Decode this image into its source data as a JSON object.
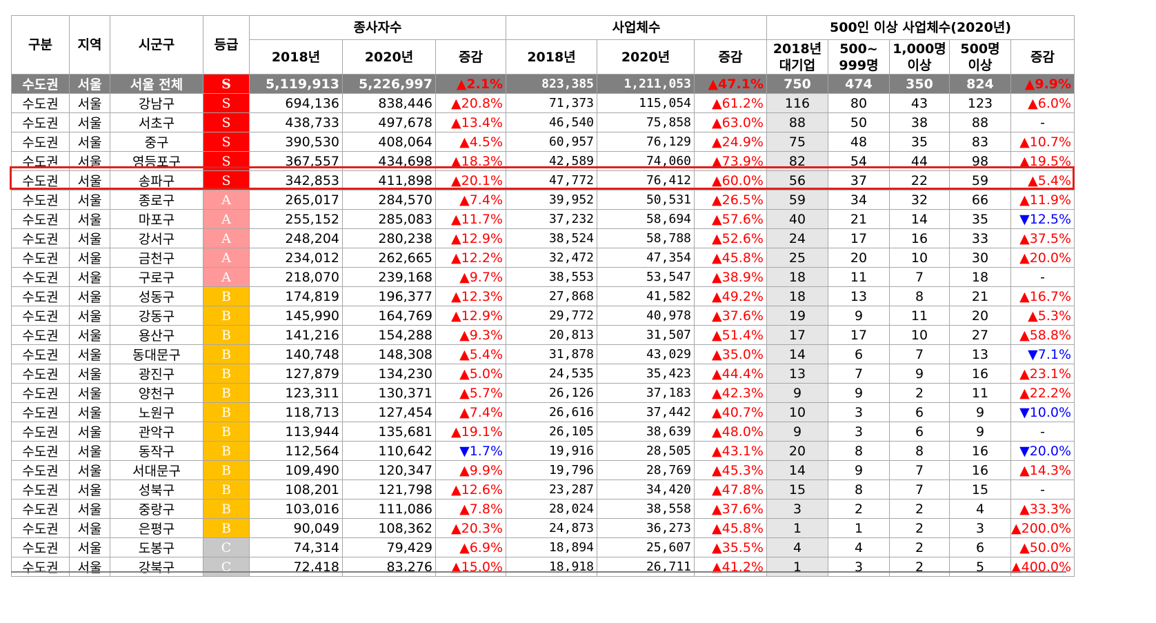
{
  "header": {
    "gubun": "구분",
    "region": "지역",
    "district": "시군구",
    "grade": "등급",
    "employees_group": "종사자수",
    "businesses_group": "사업체수",
    "large_group": "500인 이상 사업체수(2020년)",
    "y2018": "2018년",
    "y2020": "2020년",
    "change": "증감",
    "large_2018_a": "2018년",
    "large_2018_b": "대기업",
    "b500_a": "500~",
    "b500_b": "999명",
    "b1000_a": "1,000명",
    "b1000_b": "이상",
    "b500plus_a": "500명",
    "b500plus_b": "이상"
  },
  "grade_colors": {
    "S": "#ff0000",
    "A": "#ff9999",
    "B": "#ffc000",
    "C": "#c8c8c8"
  },
  "rows": [
    {
      "area": "수도권",
      "region": "서울",
      "district": "서울 전체",
      "grade": "S",
      "emp2018": "5,119,913",
      "emp2020": "5,226,997",
      "empChg": "▲2.1%",
      "biz2018": "823,385",
      "biz2020": "1,211,053",
      "bizChg": "▲47.1%",
      "large2018": "750",
      "b500": "474",
      "b1000": "350",
      "b500plus": "824",
      "largeChg": "▲9.9%"
    },
    {
      "area": "수도권",
      "region": "서울",
      "district": "강남구",
      "grade": "S",
      "emp2018": "694,136",
      "emp2020": "838,446",
      "empChg": "▲20.8%",
      "biz2018": "71,373",
      "biz2020": "115,054",
      "bizChg": "▲61.2%",
      "large2018": "116",
      "b500": "80",
      "b1000": "43",
      "b500plus": "123",
      "largeChg": "▲6.0%"
    },
    {
      "area": "수도권",
      "region": "서울",
      "district": "서초구",
      "grade": "S",
      "emp2018": "438,733",
      "emp2020": "497,678",
      "empChg": "▲13.4%",
      "biz2018": "46,540",
      "biz2020": "75,858",
      "bizChg": "▲63.0%",
      "large2018": "88",
      "b500": "50",
      "b1000": "38",
      "b500plus": "88",
      "largeChg": "-"
    },
    {
      "area": "수도권",
      "region": "서울",
      "district": "중구",
      "grade": "S",
      "emp2018": "390,530",
      "emp2020": "408,064",
      "empChg": "▲4.5%",
      "biz2018": "60,957",
      "biz2020": "76,129",
      "bizChg": "▲24.9%",
      "large2018": "75",
      "b500": "48",
      "b1000": "35",
      "b500plus": "83",
      "largeChg": "▲10.7%"
    },
    {
      "area": "수도권",
      "region": "서울",
      "district": "영등포구",
      "grade": "S",
      "emp2018": "367,557",
      "emp2020": "434,698",
      "empChg": "▲18.3%",
      "biz2018": "42,589",
      "biz2020": "74,060",
      "bizChg": "▲73.9%",
      "large2018": "82",
      "b500": "54",
      "b1000": "44",
      "b500plus": "98",
      "largeChg": "▲19.5%"
    },
    {
      "area": "수도권",
      "region": "서울",
      "district": "송파구",
      "grade": "S",
      "emp2018": "342,853",
      "emp2020": "411,898",
      "empChg": "▲20.1%",
      "biz2018": "47,772",
      "biz2020": "76,412",
      "bizChg": "▲60.0%",
      "large2018": "56",
      "b500": "37",
      "b1000": "22",
      "b500plus": "59",
      "largeChg": "▲5.4%"
    },
    {
      "area": "수도권",
      "region": "서울",
      "district": "종로구",
      "grade": "A",
      "emp2018": "265,017",
      "emp2020": "284,570",
      "empChg": "▲7.4%",
      "biz2018": "39,952",
      "biz2020": "50,531",
      "bizChg": "▲26.5%",
      "large2018": "59",
      "b500": "34",
      "b1000": "32",
      "b500plus": "66",
      "largeChg": "▲11.9%"
    },
    {
      "area": "수도권",
      "region": "서울",
      "district": "마포구",
      "grade": "A",
      "emp2018": "255,152",
      "emp2020": "285,083",
      "empChg": "▲11.7%",
      "biz2018": "37,232",
      "biz2020": "58,694",
      "bizChg": "▲57.6%",
      "large2018": "40",
      "b500": "21",
      "b1000": "14",
      "b500plus": "35",
      "largeChg": "▼12.5%"
    },
    {
      "area": "수도권",
      "region": "서울",
      "district": "강서구",
      "grade": "A",
      "emp2018": "248,204",
      "emp2020": "280,238",
      "empChg": "▲12.9%",
      "biz2018": "38,524",
      "biz2020": "58,788",
      "bizChg": "▲52.6%",
      "large2018": "24",
      "b500": "17",
      "b1000": "16",
      "b500plus": "33",
      "largeChg": "▲37.5%"
    },
    {
      "area": "수도권",
      "region": "서울",
      "district": "금천구",
      "grade": "A",
      "emp2018": "234,012",
      "emp2020": "262,665",
      "empChg": "▲12.2%",
      "biz2018": "32,472",
      "biz2020": "47,354",
      "bizChg": "▲45.8%",
      "large2018": "25",
      "b500": "20",
      "b1000": "10",
      "b500plus": "30",
      "largeChg": "▲20.0%"
    },
    {
      "area": "수도권",
      "region": "서울",
      "district": "구로구",
      "grade": "A",
      "emp2018": "218,070",
      "emp2020": "239,168",
      "empChg": "▲9.7%",
      "biz2018": "38,553",
      "biz2020": "53,547",
      "bizChg": "▲38.9%",
      "large2018": "18",
      "b500": "11",
      "b1000": "7",
      "b500plus": "18",
      "largeChg": "-"
    },
    {
      "area": "수도권",
      "region": "서울",
      "district": "성동구",
      "grade": "B",
      "emp2018": "174,819",
      "emp2020": "196,377",
      "empChg": "▲12.3%",
      "biz2018": "27,868",
      "biz2020": "41,582",
      "bizChg": "▲49.2%",
      "large2018": "18",
      "b500": "13",
      "b1000": "8",
      "b500plus": "21",
      "largeChg": "▲16.7%"
    },
    {
      "area": "수도권",
      "region": "서울",
      "district": "강동구",
      "grade": "B",
      "emp2018": "145,990",
      "emp2020": "164,769",
      "empChg": "▲12.9%",
      "biz2018": "29,772",
      "biz2020": "40,978",
      "bizChg": "▲37.6%",
      "large2018": "19",
      "b500": "9",
      "b1000": "11",
      "b500plus": "20",
      "largeChg": "▲5.3%"
    },
    {
      "area": "수도권",
      "region": "서울",
      "district": "용산구",
      "grade": "B",
      "emp2018": "141,216",
      "emp2020": "154,288",
      "empChg": "▲9.3%",
      "biz2018": "20,813",
      "biz2020": "31,507",
      "bizChg": "▲51.4%",
      "large2018": "17",
      "b500": "17",
      "b1000": "10",
      "b500plus": "27",
      "largeChg": "▲58.8%"
    },
    {
      "area": "수도권",
      "region": "서울",
      "district": "동대문구",
      "grade": "B",
      "emp2018": "140,748",
      "emp2020": "148,308",
      "empChg": "▲5.4%",
      "biz2018": "31,878",
      "biz2020": "43,029",
      "bizChg": "▲35.0%",
      "large2018": "14",
      "b500": "6",
      "b1000": "7",
      "b500plus": "13",
      "largeChg": "▼7.1%"
    },
    {
      "area": "수도권",
      "region": "서울",
      "district": "광진구",
      "grade": "B",
      "emp2018": "127,879",
      "emp2020": "134,230",
      "empChg": "▲5.0%",
      "biz2018": "24,535",
      "biz2020": "35,423",
      "bizChg": "▲44.4%",
      "large2018": "13",
      "b500": "7",
      "b1000": "9",
      "b500plus": "16",
      "largeChg": "▲23.1%"
    },
    {
      "area": "수도권",
      "region": "서울",
      "district": "양천구",
      "grade": "B",
      "emp2018": "123,311",
      "emp2020": "130,371",
      "empChg": "▲5.7%",
      "biz2018": "26,126",
      "biz2020": "37,183",
      "bizChg": "▲42.3%",
      "large2018": "9",
      "b500": "9",
      "b1000": "2",
      "b500plus": "11",
      "largeChg": "▲22.2%"
    },
    {
      "area": "수도권",
      "region": "서울",
      "district": "노원구",
      "grade": "B",
      "emp2018": "118,713",
      "emp2020": "127,454",
      "empChg": "▲7.4%",
      "biz2018": "26,616",
      "biz2020": "37,442",
      "bizChg": "▲40.7%",
      "large2018": "10",
      "b500": "3",
      "b1000": "6",
      "b500plus": "9",
      "largeChg": "▼10.0%"
    },
    {
      "area": "수도권",
      "region": "서울",
      "district": "관악구",
      "grade": "B",
      "emp2018": "113,944",
      "emp2020": "135,681",
      "empChg": "▲19.1%",
      "biz2018": "26,105",
      "biz2020": "38,639",
      "bizChg": "▲48.0%",
      "large2018": "9",
      "b500": "3",
      "b1000": "6",
      "b500plus": "9",
      "largeChg": "-"
    },
    {
      "area": "수도권",
      "region": "서울",
      "district": "동작구",
      "grade": "B",
      "emp2018": "112,564",
      "emp2020": "110,642",
      "empChg": "▼1.7%",
      "biz2018": "19,916",
      "biz2020": "28,505",
      "bizChg": "▲43.1%",
      "large2018": "20",
      "b500": "8",
      "b1000": "8",
      "b500plus": "16",
      "largeChg": "▼20.0%"
    },
    {
      "area": "수도권",
      "region": "서울",
      "district": "서대문구",
      "grade": "B",
      "emp2018": "109,490",
      "emp2020": "120,347",
      "empChg": "▲9.9%",
      "biz2018": "19,796",
      "biz2020": "28,769",
      "bizChg": "▲45.3%",
      "large2018": "14",
      "b500": "9",
      "b1000": "7",
      "b500plus": "16",
      "largeChg": "▲14.3%"
    },
    {
      "area": "수도권",
      "region": "서울",
      "district": "성북구",
      "grade": "B",
      "emp2018": "108,201",
      "emp2020": "121,798",
      "empChg": "▲12.6%",
      "biz2018": "23,287",
      "biz2020": "34,420",
      "bizChg": "▲47.8%",
      "large2018": "15",
      "b500": "8",
      "b1000": "7",
      "b500plus": "15",
      "largeChg": "-"
    },
    {
      "area": "수도권",
      "region": "서울",
      "district": "중랑구",
      "grade": "B",
      "emp2018": "103,016",
      "emp2020": "111,086",
      "empChg": "▲7.8%",
      "biz2018": "28,024",
      "biz2020": "38,558",
      "bizChg": "▲37.6%",
      "large2018": "3",
      "b500": "2",
      "b1000": "2",
      "b500plus": "4",
      "largeChg": "▲33.3%"
    },
    {
      "area": "수도권",
      "region": "서울",
      "district": "은평구",
      "grade": "B",
      "emp2018": "90,049",
      "emp2020": "108,362",
      "empChg": "▲20.3%",
      "biz2018": "24,873",
      "biz2020": "36,273",
      "bizChg": "▲45.8%",
      "large2018": "1",
      "b500": "1",
      "b1000": "2",
      "b500plus": "3",
      "largeChg": "▲200.0%"
    },
    {
      "area": "수도권",
      "region": "서울",
      "district": "도봉구",
      "grade": "C",
      "emp2018": "74,314",
      "emp2020": "79,429",
      "empChg": "▲6.9%",
      "biz2018": "18,894",
      "biz2020": "25,607",
      "bizChg": "▲35.5%",
      "large2018": "4",
      "b500": "4",
      "b1000": "2",
      "b500plus": "6",
      "largeChg": "▲50.0%"
    },
    {
      "area": "수도권",
      "region": "서울",
      "district": "강북구",
      "grade": "C",
      "emp2018": "72,418",
      "emp2020": "83,276",
      "empChg": "▲15.0%",
      "biz2018": "18,918",
      "biz2020": "26,711",
      "bizChg": "▲41.2%",
      "large2018": "1",
      "b500": "3",
      "b1000": "2",
      "b500plus": "5",
      "largeChg": "▲400.0%"
    }
  ]
}
